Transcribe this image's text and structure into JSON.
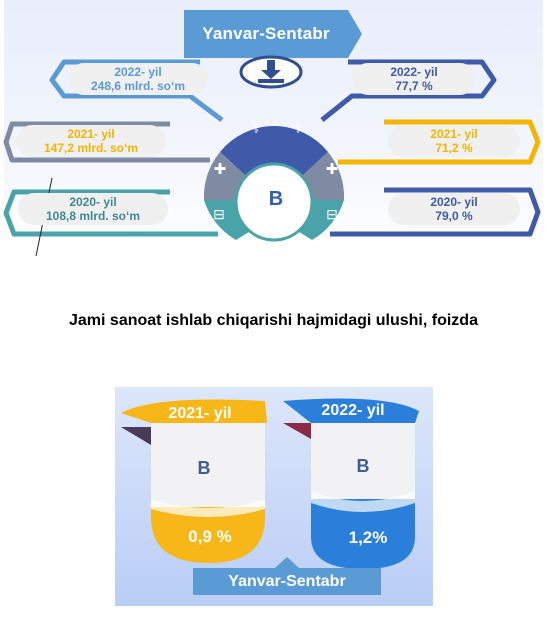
{
  "top": {
    "banner": "Yanvar-Sentabr",
    "center_letter": "B",
    "left": [
      {
        "year": "2022- yil",
        "value": "248,6 mlrd. so‘m",
        "color": "#5b9bd5"
      },
      {
        "year": "2021- yil",
        "value": "147,2 mlrd. so‘m",
        "color": "#f4b400"
      },
      {
        "year": "2020- yil",
        "value": "108,8 mlrd. so‘m",
        "color": "#4aa3a8"
      }
    ],
    "right": [
      {
        "year": "2022- yil",
        "value": "77,7 %",
        "color": "#3f5aa8"
      },
      {
        "year": "2021- yil",
        "value": "71,2 %",
        "color": "#f4b400"
      },
      {
        "year": "2020- yil",
        "value": "79,0 %",
        "color": "#3f5aa8"
      }
    ]
  },
  "section_title": "Jami sanoat ishlab chiqarishi hajmidagi ulushi, foizda",
  "bottom": {
    "banner": "Yanvar-Sentabr",
    "cylinders": [
      {
        "year": "2021- yil",
        "letter": "B",
        "percent": "0,9 %",
        "color": "#f7b718"
      },
      {
        "year": "2022- yil",
        "letter": "B",
        "percent": "1,2%",
        "color": "#2a7fdb"
      }
    ]
  }
}
